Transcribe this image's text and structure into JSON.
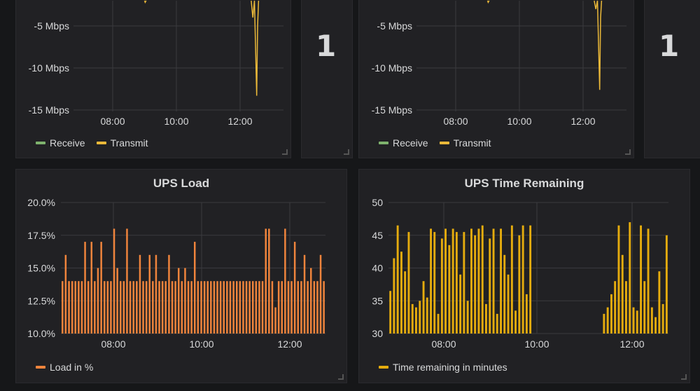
{
  "panels": {
    "net_left": {
      "stat_value": "1",
      "chart_data": {
        "type": "line",
        "title": "",
        "xlabel": "",
        "ylabel": "",
        "y_ticks": [
          "-5 Mbps",
          "-10 Mbps",
          "-15 Mbps"
        ],
        "y_tick_values": [
          -5,
          -10,
          -15
        ],
        "x_ticks": [
          "08:00",
          "10:00",
          "12:00"
        ],
        "ylim": [
          -16,
          -1
        ],
        "series": [
          {
            "name": "Receive",
            "color": "#7eb26d",
            "points": []
          },
          {
            "name": "Transmit",
            "color": "#eab839",
            "points": [
              [
                9.0,
                -1.0
              ],
              [
                9.02,
                -2.2
              ],
              [
                9.05,
                -1.0
              ],
              [
                12.35,
                -1.0
              ],
              [
                12.4,
                -4.0
              ],
              [
                12.45,
                -2.0
              ],
              [
                12.52,
                -13.3
              ],
              [
                12.55,
                -5.0
              ],
              [
                12.58,
                -1.0
              ]
            ]
          }
        ]
      }
    },
    "net_right": {
      "stat_value": "1",
      "chart_data": {
        "type": "line",
        "title": "",
        "xlabel": "",
        "ylabel": "",
        "y_ticks": [
          "-5 Mbps",
          "-10 Mbps",
          "-15 Mbps"
        ],
        "y_tick_values": [
          -5,
          -10,
          -15
        ],
        "x_ticks": [
          "08:00",
          "10:00",
          "12:00"
        ],
        "ylim": [
          -16,
          -1
        ],
        "series": [
          {
            "name": "Receive",
            "color": "#7eb26d",
            "points": []
          },
          {
            "name": "Transmit",
            "color": "#eab839",
            "points": [
              [
                9.0,
                -1.0
              ],
              [
                9.02,
                -2.2
              ],
              [
                9.05,
                -1.0
              ],
              [
                12.35,
                -1.0
              ],
              [
                12.4,
                -3.0
              ],
              [
                12.45,
                -2.0
              ],
              [
                12.52,
                -12.6
              ],
              [
                12.55,
                -4.0
              ],
              [
                12.58,
                -1.0
              ]
            ]
          }
        ]
      }
    },
    "ups_load": {
      "title": "UPS Load",
      "chart_data": {
        "type": "bar",
        "title": "UPS Load",
        "xlabel": "",
        "ylabel": "",
        "y_ticks": [
          "20.0%",
          "17.5%",
          "15.0%",
          "12.5%",
          "10.0%"
        ],
        "y_tick_values": [
          20,
          17.5,
          15,
          12.5,
          10
        ],
        "x_ticks": [
          "08:00",
          "10:00",
          "12:00"
        ],
        "ylim": [
          10,
          20
        ],
        "series": [
          {
            "name": "Load in %",
            "color": "#ef843c",
            "values": [
              14,
              16,
              14,
              14,
              14,
              14,
              14,
              17,
              14,
              17,
              14,
              15,
              17,
              14,
              14,
              14,
              18,
              15,
              14,
              14,
              18,
              14,
              14,
              14,
              16,
              14,
              14,
              16,
              14,
              16,
              14,
              14,
              14,
              16,
              14,
              14,
              15,
              14,
              15,
              14,
              14,
              17,
              14,
              14,
              14,
              14,
              14,
              14,
              14,
              14,
              14,
              14,
              14,
              14,
              14,
              14,
              14,
              14,
              14,
              14,
              14,
              14,
              14,
              18,
              18,
              14,
              12,
              14,
              14,
              18,
              14,
              14,
              17,
              14,
              14,
              16,
              14,
              15,
              14,
              14,
              16,
              14
            ]
          }
        ]
      }
    },
    "ups_time": {
      "title": "UPS Time Remaining",
      "chart_data": {
        "type": "bar",
        "title": "UPS Time Remaining",
        "xlabel": "",
        "ylabel": "",
        "y_ticks": [
          "50",
          "45",
          "40",
          "35",
          "30"
        ],
        "y_tick_values": [
          50,
          45,
          40,
          35,
          30
        ],
        "x_ticks": [
          "08:00",
          "10:00",
          "12:00"
        ],
        "ylim": [
          30,
          50
        ],
        "series": [
          {
            "name": "Time remaining in minutes",
            "color": "#e5ac0e",
            "values": [
              36.5,
              41.5,
              46.5,
              42.5,
              39.5,
              45.5,
              34.5,
              34,
              35,
              38,
              35.5,
              46,
              45.5,
              33,
              44.5,
              46,
              43.5,
              46,
              45.5,
              39,
              45.5,
              35,
              46,
              45,
              46,
              46.5,
              34.5,
              44.5,
              46,
              33,
              46,
              42,
              39,
              46.5,
              33.5,
              45,
              46.5,
              36,
              46.5,
              null,
              null,
              null,
              null,
              null,
              null,
              null,
              null,
              null,
              null,
              null,
              null,
              null,
              null,
              null,
              null,
              null,
              null,
              null,
              33,
              34,
              36,
              38,
              46.5,
              42,
              38,
              47,
              34,
              33.5,
              46.5,
              38,
              46,
              34,
              32.5,
              39.5,
              34.5,
              45
            ]
          }
        ]
      }
    }
  }
}
